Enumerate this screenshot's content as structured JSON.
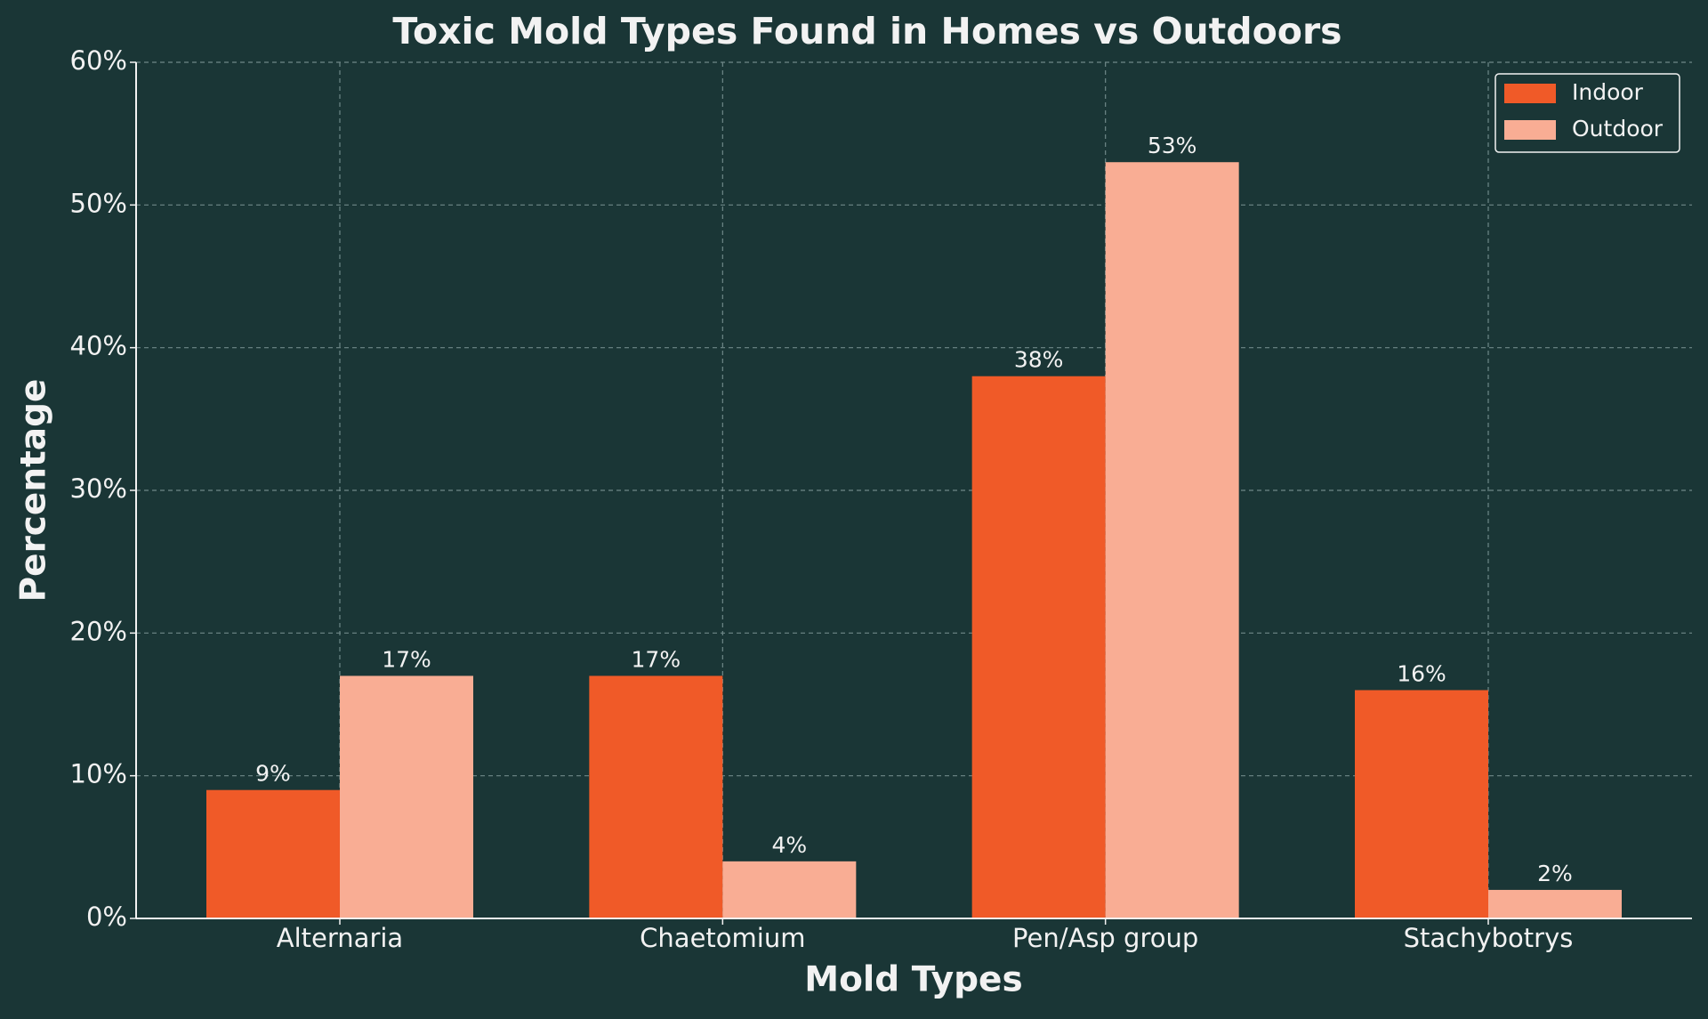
{
  "chart_data": {
    "type": "bar",
    "title": "Toxic Mold Types Found in Homes vs Outdoors",
    "x_label": "Mold Types",
    "y_label": "Percentage",
    "categories": [
      "Alternaria",
      "Chaetomium",
      "Pen/Asp group",
      "Stachybotrys"
    ],
    "series": [
      {
        "name": "Indoor",
        "color": "#f05a28",
        "values": [
          9,
          17,
          38,
          16
        ],
        "value_labels": [
          "9%",
          "17%",
          "38%",
          "16%"
        ]
      },
      {
        "name": "Outdoor",
        "color": "#f9ad94",
        "values": [
          17,
          4,
          53,
          2
        ],
        "value_labels": [
          "17%",
          "4%",
          "53%",
          "2%"
        ]
      }
    ],
    "ylim": [
      0,
      60
    ],
    "yticks": [
      {
        "value": 0,
        "label": "0%"
      },
      {
        "value": 10,
        "label": "10%"
      },
      {
        "value": 20,
        "label": "20%"
      },
      {
        "value": 30,
        "label": "30%"
      },
      {
        "value": 40,
        "label": "40%"
      },
      {
        "value": 50,
        "label": "50%"
      },
      {
        "value": 60,
        "label": "60%"
      }
    ],
    "grid": true,
    "legend": "upper right"
  }
}
